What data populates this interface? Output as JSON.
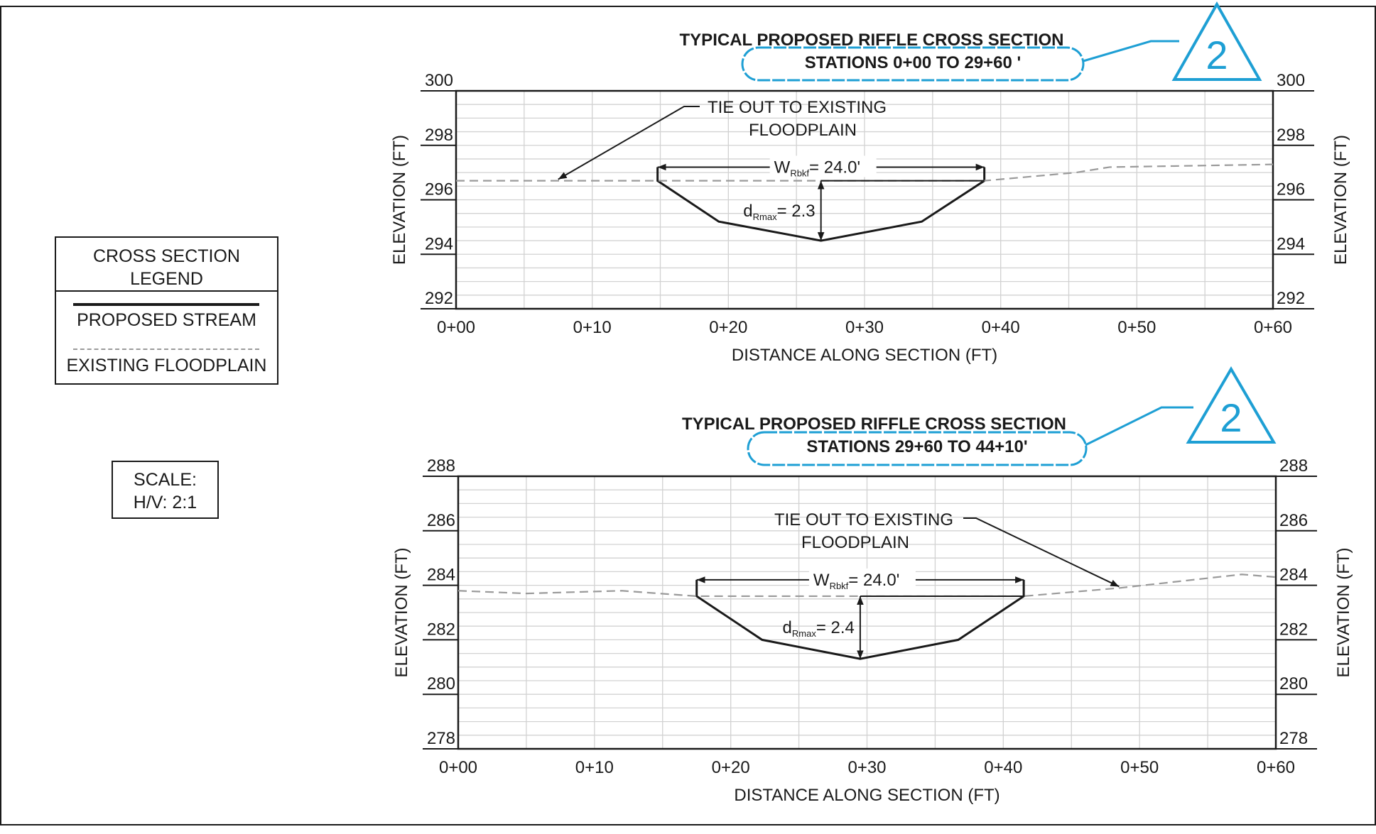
{
  "legend": {
    "title_line1": "CROSS SECTION",
    "title_line2": "LEGEND",
    "proposed_label": "PROPOSED STREAM",
    "existing_label": "EXISTING FLOODPLAIN"
  },
  "scale": {
    "line1": "SCALE:",
    "line2": "H/V: 2:1"
  },
  "colors": {
    "ink": "#1a1a1a",
    "grid": "#d2d2d2",
    "existing": "#9a9a9a",
    "revision": "#1e9fd4"
  },
  "chart_data": [
    {
      "type": "line",
      "title": "TYPICAL PROPOSED RIFFLE CROSS SECTION",
      "subtitle": "STATIONS 0+00 TO 29+60 '",
      "revision_mark": "2",
      "xlabel": "DISTANCE ALONG SECTION (FT)",
      "ylabel": "ELEVATION (FT)",
      "xlim": [
        0,
        60
      ],
      "ylim": [
        292,
        300
      ],
      "x_ticks": [
        0,
        10,
        20,
        30,
        40,
        50,
        60
      ],
      "x_tick_labels": [
        "0+00",
        "0+10",
        "0+20",
        "0+30",
        "0+40",
        "0+50",
        "0+60"
      ],
      "y_ticks": [
        292,
        294,
        296,
        298,
        300
      ],
      "y_tick_labels": [
        "292",
        "294",
        "296",
        "298",
        "300"
      ],
      "grid": true,
      "series": [
        {
          "name": "PROPOSED STREAM",
          "style": "solid",
          "x": [
            14.8,
            14.8,
            19.3,
            26.8,
            34.2,
            38.8,
            38.8
          ],
          "y": [
            297.2,
            296.7,
            295.2,
            294.5,
            295.2,
            296.7,
            297.2
          ]
        },
        {
          "name": "EXISTING FLOODPLAIN",
          "style": "dashed",
          "x": [
            0,
            7.5,
            14.8,
            38.8,
            45.5,
            48,
            60
          ],
          "y": [
            296.7,
            296.7,
            296.7,
            296.7,
            297.0,
            297.2,
            297.3
          ]
        }
      ],
      "annotations": {
        "tie_out_line1": "TIE OUT TO EXISTING",
        "tie_out_line2": "FLOODPLAIN",
        "tie_out_side": "left",
        "tie_out_target": [
          7.5,
          296.7
        ],
        "width_label": "W",
        "width_sub": "Rbkf",
        "width_value": "= 24.0'",
        "width_range": [
          14.8,
          38.8
        ],
        "width_elev": 297.2,
        "depth_label": "d",
        "depth_sub": "Rmax",
        "depth_value": "= 2.3",
        "depth_station": 26.8,
        "depth_range": [
          294.5,
          296.7
        ],
        "depth_ref_from": 26.8,
        "depth_ref_to": 38.8
      }
    },
    {
      "type": "line",
      "title": "TYPICAL PROPOSED RIFFLE CROSS SECTION",
      "subtitle": "STATIONS 29+60 TO 44+10'",
      "revision_mark": "2",
      "xlabel": "DISTANCE ALONG SECTION (FT)",
      "ylabel": "ELEVATION (FT)",
      "xlim": [
        0,
        60
      ],
      "ylim": [
        278,
        288
      ],
      "x_ticks": [
        0,
        10,
        20,
        30,
        40,
        50,
        60
      ],
      "x_tick_labels": [
        "0+00",
        "0+10",
        "0+20",
        "0+30",
        "0+40",
        "0+50",
        "0+60"
      ],
      "y_ticks": [
        278,
        280,
        282,
        284,
        286,
        288
      ],
      "y_tick_labels": [
        "278",
        "280",
        "282",
        "284",
        "286",
        "288"
      ],
      "grid": true,
      "series": [
        {
          "name": "PROPOSED STREAM",
          "style": "solid",
          "x": [
            17.5,
            17.5,
            22.3,
            29.5,
            36.7,
            41.5,
            41.5
          ],
          "y": [
            284.2,
            283.6,
            282.0,
            281.3,
            282.0,
            283.6,
            284.2
          ]
        },
        {
          "name": "EXISTING FLOODPLAIN",
          "style": "dashed",
          "x": [
            0,
            5,
            12,
            17.5,
            41.5,
            48.5,
            57.5,
            60
          ],
          "y": [
            283.8,
            283.7,
            283.8,
            283.6,
            283.6,
            283.9,
            284.4,
            284.3
          ]
        }
      ],
      "annotations": {
        "tie_out_line1": "TIE OUT TO EXISTING",
        "tie_out_line2": "FLOODPLAIN",
        "tie_out_side": "right",
        "tie_out_target": [
          48.5,
          283.9
        ],
        "width_label": "W",
        "width_sub": "Rbkf",
        "width_value": "= 24.0'",
        "width_range": [
          17.5,
          41.5
        ],
        "width_elev": 284.2,
        "depth_label": "d",
        "depth_sub": "Rmax",
        "depth_value": "= 2.4",
        "depth_station": 29.5,
        "depth_range": [
          281.3,
          283.6
        ],
        "depth_ref_from": 29.5,
        "depth_ref_to": 41.5
      }
    }
  ]
}
